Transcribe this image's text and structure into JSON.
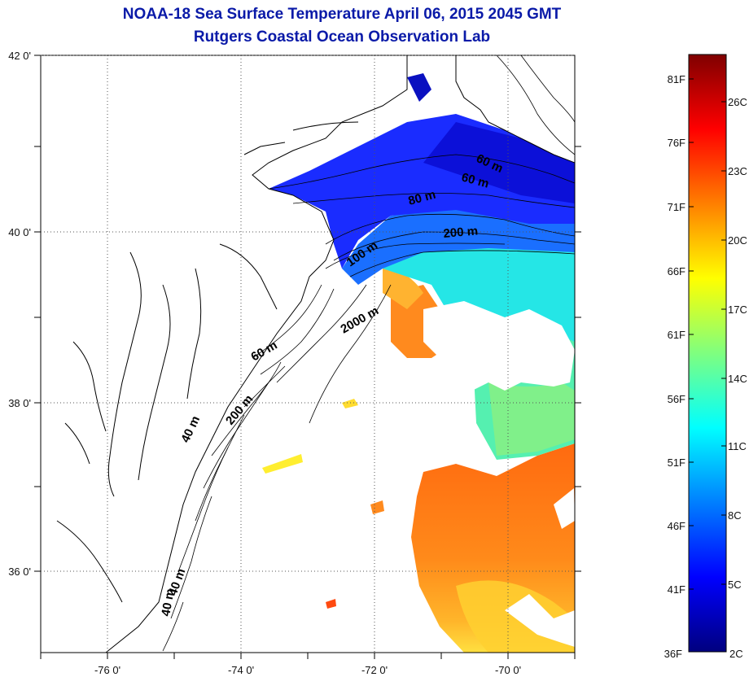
{
  "title": "NOAA-18 Sea Surface Temperature April 06, 2015 2045 GMT",
  "subtitle": "Rutgers Coastal Ocean Observation Lab",
  "map": {
    "lon_range": [
      -77,
      -69
    ],
    "lat_range": [
      35,
      42
    ],
    "lon_ticks": [
      {
        "value": -76,
        "label": "-76 0'"
      },
      {
        "value": -74,
        "label": "-74 0'"
      },
      {
        "value": -72,
        "label": "-72 0'"
      },
      {
        "value": -70,
        "label": "-70 0'"
      }
    ],
    "lat_ticks": [
      {
        "value": 42,
        "label": "42 0'"
      },
      {
        "value": 40,
        "label": "40 0'"
      },
      {
        "value": 38,
        "label": "38 0'"
      },
      {
        "value": 36,
        "label": "36 0'"
      }
    ],
    "grid": "dotted",
    "isobath_labels": [
      "60 m",
      "60 m",
      "80 m",
      "200 m",
      "100 m",
      "2000 m",
      "60 m",
      "200 m",
      "40 m",
      "40 m",
      "40 m"
    ]
  },
  "colorbar": {
    "range_c": [
      2,
      28
    ],
    "fahrenheit_labels": [
      "81F",
      "76F",
      "71F",
      "66F",
      "61F",
      "56F",
      "51F",
      "46F",
      "41F",
      "36F"
    ],
    "celsius_labels": [
      "26C",
      "23C",
      "20C",
      "17C",
      "14C",
      "11C",
      "8C",
      "5C",
      "2C"
    ],
    "colors": [
      "#00007f",
      "#0000ff",
      "#007fff",
      "#00ffff",
      "#7fff7f",
      "#ffff00",
      "#ff7f00",
      "#ff0000",
      "#7f0000"
    ]
  }
}
